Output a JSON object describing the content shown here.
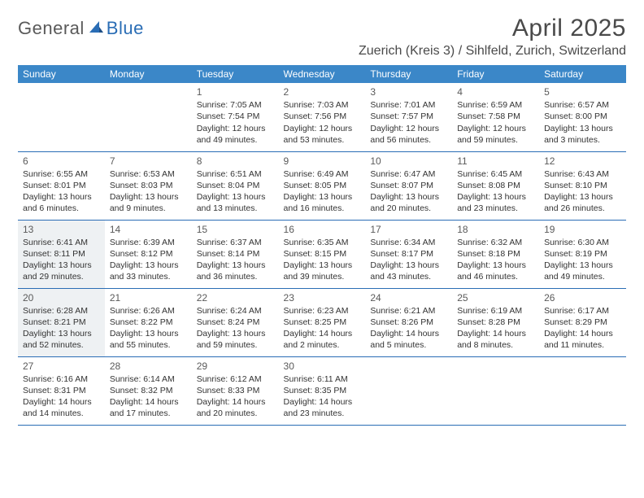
{
  "brand": {
    "name_part1": "General",
    "name_part2": "Blue",
    "icon_color": "#2a6db5"
  },
  "title": "April 2025",
  "location": "Zuerich (Kreis 3) / Sihlfeld, Zurich, Switzerland",
  "colors": {
    "header_bg": "#3b87c8",
    "header_text": "#ffffff",
    "border": "#2a6db5",
    "shaded_bg": "#eef1f3",
    "text": "#333333",
    "title_text": "#4a4a4a"
  },
  "day_headers": [
    "Sunday",
    "Monday",
    "Tuesday",
    "Wednesday",
    "Thursday",
    "Friday",
    "Saturday"
  ],
  "weeks": [
    [
      {
        "blank": true
      },
      {
        "blank": true
      },
      {
        "day": "1",
        "sunrise": "Sunrise: 7:05 AM",
        "sunset": "Sunset: 7:54 PM",
        "daylight": "Daylight: 12 hours and 49 minutes."
      },
      {
        "day": "2",
        "sunrise": "Sunrise: 7:03 AM",
        "sunset": "Sunset: 7:56 PM",
        "daylight": "Daylight: 12 hours and 53 minutes."
      },
      {
        "day": "3",
        "sunrise": "Sunrise: 7:01 AM",
        "sunset": "Sunset: 7:57 PM",
        "daylight": "Daylight: 12 hours and 56 minutes."
      },
      {
        "day": "4",
        "sunrise": "Sunrise: 6:59 AM",
        "sunset": "Sunset: 7:58 PM",
        "daylight": "Daylight: 12 hours and 59 minutes."
      },
      {
        "day": "5",
        "sunrise": "Sunrise: 6:57 AM",
        "sunset": "Sunset: 8:00 PM",
        "daylight": "Daylight: 13 hours and 3 minutes."
      }
    ],
    [
      {
        "day": "6",
        "sunrise": "Sunrise: 6:55 AM",
        "sunset": "Sunset: 8:01 PM",
        "daylight": "Daylight: 13 hours and 6 minutes."
      },
      {
        "day": "7",
        "sunrise": "Sunrise: 6:53 AM",
        "sunset": "Sunset: 8:03 PM",
        "daylight": "Daylight: 13 hours and 9 minutes."
      },
      {
        "day": "8",
        "sunrise": "Sunrise: 6:51 AM",
        "sunset": "Sunset: 8:04 PM",
        "daylight": "Daylight: 13 hours and 13 minutes."
      },
      {
        "day": "9",
        "sunrise": "Sunrise: 6:49 AM",
        "sunset": "Sunset: 8:05 PM",
        "daylight": "Daylight: 13 hours and 16 minutes."
      },
      {
        "day": "10",
        "sunrise": "Sunrise: 6:47 AM",
        "sunset": "Sunset: 8:07 PM",
        "daylight": "Daylight: 13 hours and 20 minutes."
      },
      {
        "day": "11",
        "sunrise": "Sunrise: 6:45 AM",
        "sunset": "Sunset: 8:08 PM",
        "daylight": "Daylight: 13 hours and 23 minutes."
      },
      {
        "day": "12",
        "sunrise": "Sunrise: 6:43 AM",
        "sunset": "Sunset: 8:10 PM",
        "daylight": "Daylight: 13 hours and 26 minutes."
      }
    ],
    [
      {
        "day": "13",
        "shaded": true,
        "sunrise": "Sunrise: 6:41 AM",
        "sunset": "Sunset: 8:11 PM",
        "daylight": "Daylight: 13 hours and 29 minutes."
      },
      {
        "day": "14",
        "sunrise": "Sunrise: 6:39 AM",
        "sunset": "Sunset: 8:12 PM",
        "daylight": "Daylight: 13 hours and 33 minutes."
      },
      {
        "day": "15",
        "sunrise": "Sunrise: 6:37 AM",
        "sunset": "Sunset: 8:14 PM",
        "daylight": "Daylight: 13 hours and 36 minutes."
      },
      {
        "day": "16",
        "sunrise": "Sunrise: 6:35 AM",
        "sunset": "Sunset: 8:15 PM",
        "daylight": "Daylight: 13 hours and 39 minutes."
      },
      {
        "day": "17",
        "sunrise": "Sunrise: 6:34 AM",
        "sunset": "Sunset: 8:17 PM",
        "daylight": "Daylight: 13 hours and 43 minutes."
      },
      {
        "day": "18",
        "sunrise": "Sunrise: 6:32 AM",
        "sunset": "Sunset: 8:18 PM",
        "daylight": "Daylight: 13 hours and 46 minutes."
      },
      {
        "day": "19",
        "sunrise": "Sunrise: 6:30 AM",
        "sunset": "Sunset: 8:19 PM",
        "daylight": "Daylight: 13 hours and 49 minutes."
      }
    ],
    [
      {
        "day": "20",
        "shaded": true,
        "sunrise": "Sunrise: 6:28 AM",
        "sunset": "Sunset: 8:21 PM",
        "daylight": "Daylight: 13 hours and 52 minutes."
      },
      {
        "day": "21",
        "sunrise": "Sunrise: 6:26 AM",
        "sunset": "Sunset: 8:22 PM",
        "daylight": "Daylight: 13 hours and 55 minutes."
      },
      {
        "day": "22",
        "sunrise": "Sunrise: 6:24 AM",
        "sunset": "Sunset: 8:24 PM",
        "daylight": "Daylight: 13 hours and 59 minutes."
      },
      {
        "day": "23",
        "sunrise": "Sunrise: 6:23 AM",
        "sunset": "Sunset: 8:25 PM",
        "daylight": "Daylight: 14 hours and 2 minutes."
      },
      {
        "day": "24",
        "sunrise": "Sunrise: 6:21 AM",
        "sunset": "Sunset: 8:26 PM",
        "daylight": "Daylight: 14 hours and 5 minutes."
      },
      {
        "day": "25",
        "sunrise": "Sunrise: 6:19 AM",
        "sunset": "Sunset: 8:28 PM",
        "daylight": "Daylight: 14 hours and 8 minutes."
      },
      {
        "day": "26",
        "sunrise": "Sunrise: 6:17 AM",
        "sunset": "Sunset: 8:29 PM",
        "daylight": "Daylight: 14 hours and 11 minutes."
      }
    ],
    [
      {
        "day": "27",
        "sunrise": "Sunrise: 6:16 AM",
        "sunset": "Sunset: 8:31 PM",
        "daylight": "Daylight: 14 hours and 14 minutes."
      },
      {
        "day": "28",
        "sunrise": "Sunrise: 6:14 AM",
        "sunset": "Sunset: 8:32 PM",
        "daylight": "Daylight: 14 hours and 17 minutes."
      },
      {
        "day": "29",
        "sunrise": "Sunrise: 6:12 AM",
        "sunset": "Sunset: 8:33 PM",
        "daylight": "Daylight: 14 hours and 20 minutes."
      },
      {
        "day": "30",
        "sunrise": "Sunrise: 6:11 AM",
        "sunset": "Sunset: 8:35 PM",
        "daylight": "Daylight: 14 hours and 23 minutes."
      },
      {
        "blank": true
      },
      {
        "blank": true
      },
      {
        "blank": true
      }
    ]
  ]
}
